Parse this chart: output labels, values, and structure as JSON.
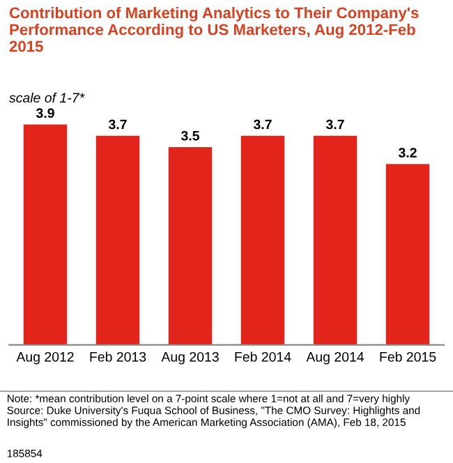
{
  "chart_data": {
    "type": "bar",
    "title": "Contribution of Marketing Analytics to Their Company's Performance According to US Marketers, Aug 2012-Feb 2015",
    "subtitle": "scale of 1-7*",
    "categories": [
      "Aug 2012",
      "Feb 2013",
      "Aug 2013",
      "Feb 2014",
      "Aug 2014",
      "Feb 2015"
    ],
    "values": [
      3.9,
      3.7,
      3.5,
      3.7,
      3.7,
      3.2
    ],
    "color": "#e3241b",
    "data_labels": true,
    "annotations": [
      "Note: *mean contribution level on a 7-point scale where 1=not at all and 7=very highly\nSource: Duke University's Fuqua School of Business, \"The CMO Survey: Highlights and Insights\" commissioned by the American Marketing Association (AMA), Feb 18, 2015",
      "185854"
    ]
  }
}
